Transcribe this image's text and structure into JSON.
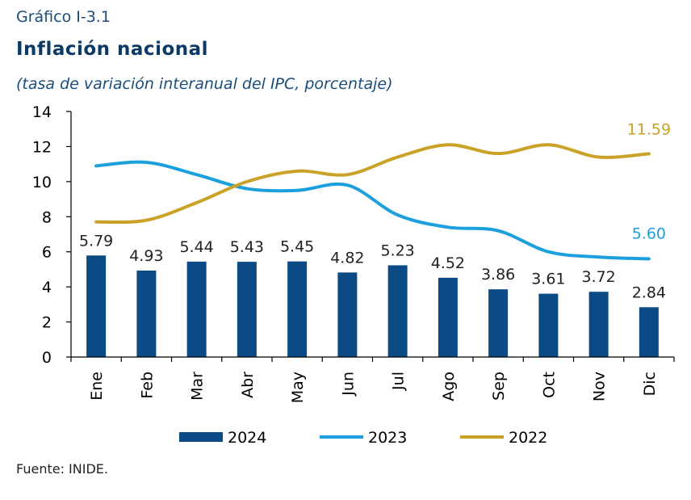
{
  "header": {
    "number": "Gráfico I-3.1",
    "title": "Inflación nacional",
    "subtitle": "(tasa de variación interanual del IPC, porcentaje)"
  },
  "footer": {
    "source": "Fuente: INIDE."
  },
  "colors": {
    "2024": "#0b4a85",
    "2023": "#1ca0dd",
    "2022": "#c9a227"
  },
  "chart_data": {
    "type": "bar",
    "categories": [
      "Ene",
      "Feb",
      "Mar",
      "Abr",
      "May",
      "Jun",
      "Jul",
      "Ago",
      "Sep",
      "Oct",
      "Nov",
      "Dic"
    ],
    "ylim": [
      0,
      14
    ],
    "yticks": [
      0,
      2,
      4,
      6,
      8,
      10,
      12,
      14
    ],
    "grid": false,
    "legend_position": "bottom",
    "series": [
      {
        "name": "2024",
        "type": "bar",
        "values": [
          5.79,
          4.93,
          5.44,
          5.43,
          5.45,
          4.82,
          5.23,
          4.52,
          3.86,
          3.61,
          3.72,
          2.84
        ],
        "labels": [
          "5.79",
          "4.93",
          "5.44",
          "5.43",
          "5.45",
          "4.82",
          "5.23",
          "4.52",
          "3.86",
          "3.61",
          "3.72",
          "2.84"
        ]
      },
      {
        "name": "2023",
        "type": "line",
        "values": [
          10.9,
          11.1,
          10.4,
          9.6,
          9.5,
          9.8,
          8.1,
          7.4,
          7.2,
          6.0,
          5.7,
          5.6
        ],
        "end_label": "5.60"
      },
      {
        "name": "2022",
        "type": "line",
        "values": [
          7.7,
          7.8,
          8.8,
          10.0,
          10.6,
          10.4,
          11.4,
          12.1,
          11.6,
          12.1,
          11.4,
          11.59
        ],
        "end_label": "11.59"
      }
    ]
  }
}
